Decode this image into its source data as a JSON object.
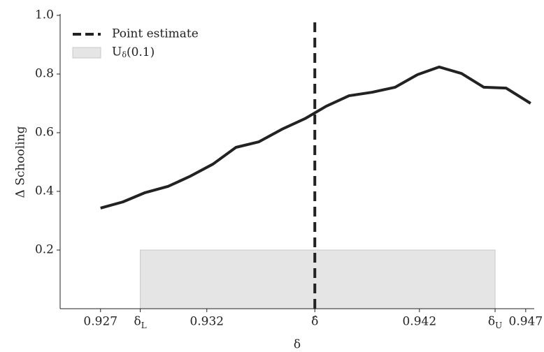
{
  "chart_data": {
    "type": "line",
    "x_label": "δ",
    "y_label": "Δ Schooling",
    "x": [
      0.927,
      0.92805,
      0.92907,
      0.93018,
      0.93123,
      0.93229,
      0.93337,
      0.93445,
      0.93554,
      0.93662,
      0.93761,
      0.93869,
      0.93978,
      0.94086,
      0.94191,
      0.94293,
      0.94398,
      0.94503,
      0.94608,
      0.94723
    ],
    "series": [
      {
        "name": "Δ Schooling",
        "color": "#222222",
        "values": [
          0.343,
          0.364,
          0.395,
          0.417,
          0.452,
          0.493,
          0.55,
          0.569,
          0.612,
          0.648,
          0.69,
          0.726,
          0.738,
          0.755,
          0.798,
          0.824,
          0.802,
          0.755,
          0.752,
          0.7
        ]
      }
    ],
    "point_estimate": {
      "name": "Point estimate",
      "x": 0.93708,
      "color": "#222222"
    },
    "band": {
      "name": "Uδ(0.1)",
      "x0": 0.92887,
      "x1": 0.94556,
      "y1": 0.2,
      "color": "#e5e5e5"
    },
    "xlim": [
      0.9251,
      0.9474
    ],
    "ylim": [
      0,
      1
    ],
    "xticks": [
      0.927,
      {
        "value": 0.92887,
        "label": "δL"
      },
      0.932,
      {
        "value": 0.93708,
        "label": "δ̂"
      },
      0.942,
      {
        "value": 0.94556,
        "label": "δU"
      },
      0.947
    ],
    "yticks": [
      0.2,
      0.4,
      0.6,
      0.8,
      {
        "value": 1,
        "label": "1.0"
      }
    ],
    "legend": "upper left"
  }
}
